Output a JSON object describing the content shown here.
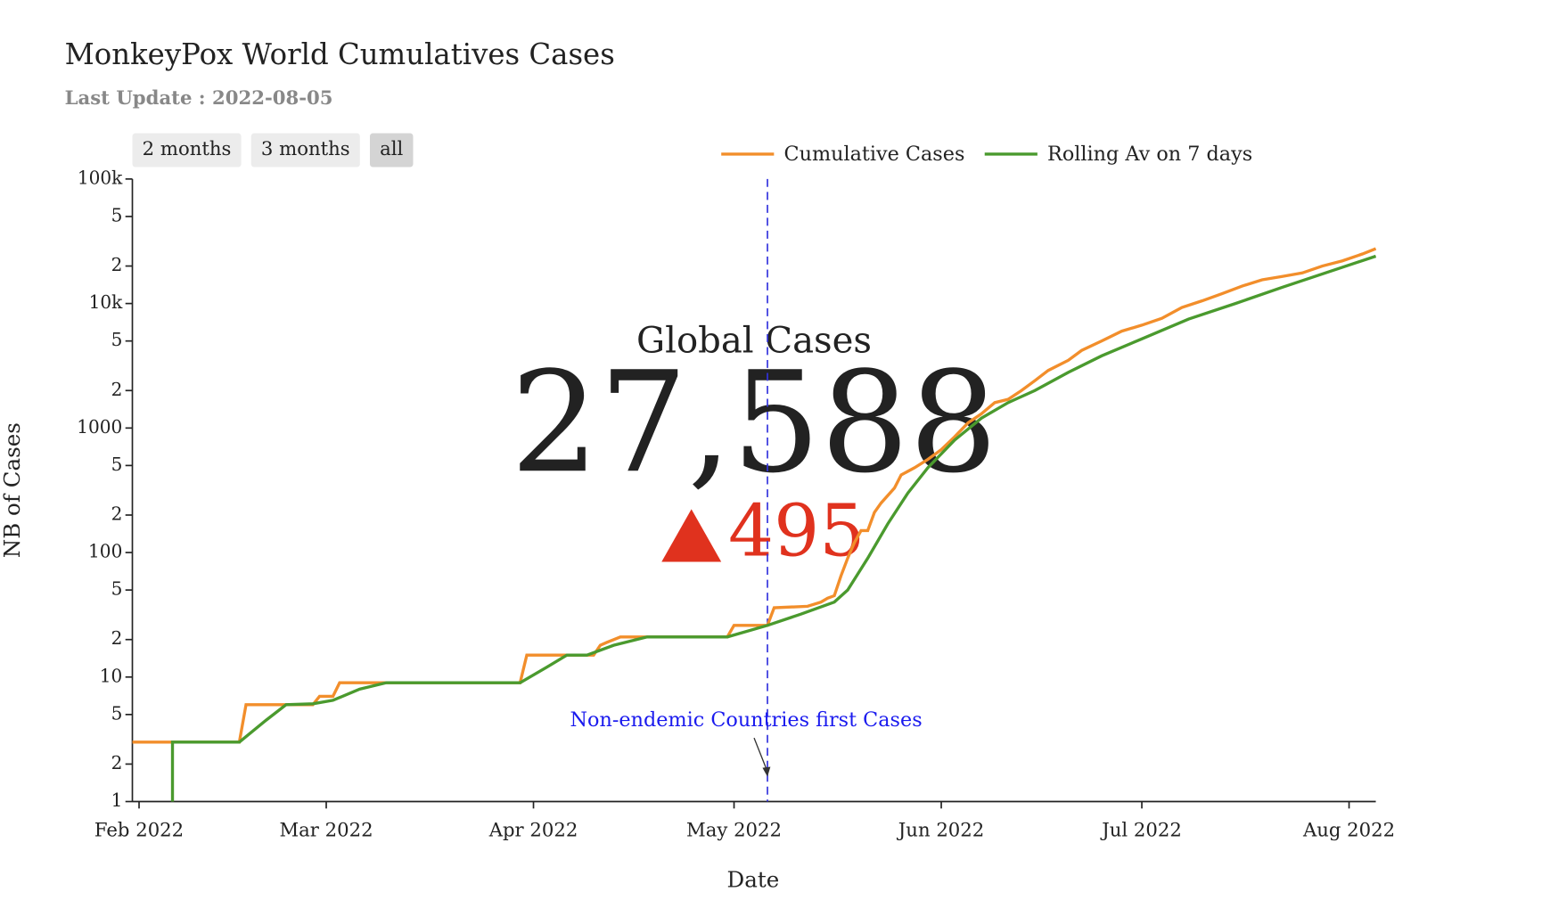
{
  "title": "MonkeyPox World Cumulatives Cases",
  "subtitle": "Last Update : 2022-08-05",
  "buttons": [
    "2 months",
    "3 months",
    "all"
  ],
  "kpi": {
    "title": "Global Cases",
    "value": "27,588",
    "change": "495"
  },
  "chart_data": {
    "type": "line",
    "y_scale": "log",
    "x_label": "Date",
    "y_label": "NB of Cases",
    "xlim": [
      "2022-01-31",
      "2022-08-05"
    ],
    "ylim": [
      1,
      100000
    ],
    "xticks": [
      {
        "value": "2022-02-01",
        "label": "Feb 2022"
      },
      {
        "value": "2022-03-01",
        "label": "Mar 2022"
      },
      {
        "value": "2022-04-01",
        "label": "Apr 2022"
      },
      {
        "value": "2022-05-01",
        "label": "May 2022"
      },
      {
        "value": "2022-06-01",
        "label": "Jun 2022"
      },
      {
        "value": "2022-07-01",
        "label": "Jul 2022"
      },
      {
        "value": "2022-08-01",
        "label": "Aug 2022"
      }
    ],
    "yticks": [
      1,
      2,
      5,
      10,
      {
        "value": 20,
        "label": "2"
      },
      {
        "value": 50,
        "label": "5"
      },
      100,
      {
        "value": 200,
        "label": "2"
      },
      {
        "value": 500,
        "label": "5"
      },
      1000,
      {
        "value": 2000,
        "label": "2"
      },
      {
        "value": 5000,
        "label": "5"
      },
      {
        "value": 10000,
        "label": "10k"
      },
      {
        "value": 20000,
        "label": "2"
      },
      {
        "value": 50000,
        "label": "5"
      },
      {
        "value": 100000,
        "label": "100k"
      }
    ],
    "legend": "top-right",
    "series": [
      {
        "name": "Cumulative Cases",
        "color": "#f28e2b",
        "x": [
          "2022-01-31",
          "2022-02-16",
          "2022-02-17",
          "2022-02-27",
          "2022-02-28",
          "2022-03-02",
          "2022-03-03",
          "2022-03-30",
          "2022-03-31",
          "2022-04-10",
          "2022-04-11",
          "2022-04-12",
          "2022-04-14",
          "2022-04-30",
          "2022-05-01",
          "2022-05-06",
          "2022-05-07",
          "2022-05-12",
          "2022-05-14",
          "2022-05-15",
          "2022-05-16",
          "2022-05-17",
          "2022-05-18",
          "2022-05-19",
          "2022-05-20",
          "2022-05-21",
          "2022-05-22",
          "2022-05-23",
          "2022-05-25",
          "2022-05-26",
          "2022-05-28",
          "2022-05-30",
          "2022-06-01",
          "2022-06-03",
          "2022-06-05",
          "2022-06-07",
          "2022-06-09",
          "2022-06-11",
          "2022-06-13",
          "2022-06-15",
          "2022-06-17",
          "2022-06-20",
          "2022-06-22",
          "2022-06-25",
          "2022-06-28",
          "2022-07-01",
          "2022-07-04",
          "2022-07-07",
          "2022-07-10",
          "2022-07-13",
          "2022-07-16",
          "2022-07-19",
          "2022-07-22",
          "2022-07-25",
          "2022-07-28",
          "2022-07-31",
          "2022-08-03",
          "2022-08-05"
        ],
        "values": [
          3,
          3,
          6,
          6,
          7,
          7,
          9,
          9,
          15,
          15,
          18,
          19,
          21,
          21,
          26,
          26,
          36,
          37,
          40,
          43,
          45,
          65,
          90,
          120,
          150,
          150,
          210,
          250,
          330,
          420,
          480,
          560,
          670,
          850,
          1100,
          1300,
          1600,
          1700,
          2000,
          2400,
          2900,
          3500,
          4200,
          5000,
          6000,
          6700,
          7600,
          9300,
          10500,
          12000,
          13800,
          15500,
          16500,
          17600,
          20000,
          22000,
          25000,
          27588
        ]
      },
      {
        "name": "Rolling Av on 7 days",
        "color": "#4a9a2e",
        "x": [
          "2022-02-06",
          "2022-02-06",
          "2022-02-16",
          "2022-02-20",
          "2022-02-23",
          "2022-02-27",
          "2022-03-02",
          "2022-03-06",
          "2022-03-10",
          "2022-03-30",
          "2022-04-03",
          "2022-04-06",
          "2022-04-09",
          "2022-04-13",
          "2022-04-18",
          "2022-04-30",
          "2022-05-06",
          "2022-05-11",
          "2022-05-16",
          "2022-05-18",
          "2022-05-21",
          "2022-05-24",
          "2022-05-27",
          "2022-05-30",
          "2022-06-03",
          "2022-06-07",
          "2022-06-11",
          "2022-06-15",
          "2022-06-20",
          "2022-06-25",
          "2022-07-01",
          "2022-07-08",
          "2022-07-15",
          "2022-07-22",
          "2022-07-29",
          "2022-08-05"
        ],
        "values": [
          1,
          3,
          3,
          4.5,
          6,
          6.1,
          6.5,
          8,
          9,
          9,
          12,
          15,
          15,
          18,
          21,
          21,
          26,
          32,
          40,
          50,
          90,
          170,
          300,
          480,
          800,
          1200,
          1600,
          2000,
          2800,
          3800,
          5200,
          7500,
          10000,
          13500,
          18000,
          24000
        ]
      }
    ],
    "annotation": {
      "text": "Non-endemic Countries first Cases",
      "x": "2022-05-06"
    }
  }
}
